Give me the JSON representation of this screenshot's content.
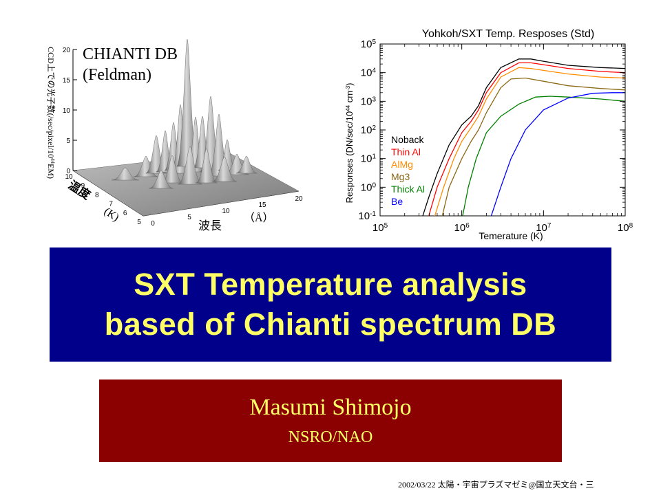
{
  "left_figure": {
    "label_line1": "CHIANTI DB",
    "label_line2": "(Feldman)",
    "z_axis_label": "CCD上での光子数(/sec/pixel/10",
    "z_axis_label_sup": "44",
    "z_axis_label_end": "EM)",
    "z_ticks": [
      "0",
      "5",
      "10",
      "15",
      "20"
    ],
    "temp_axis_label": "温度",
    "temp_unit": "(K)",
    "temp_ticks": [
      "5",
      "6",
      "7",
      "8",
      "9",
      "10"
    ],
    "wave_axis_label": "波長",
    "wave_unit": "（Å）",
    "wave_ticks": [
      "0",
      "5",
      "10",
      "15",
      "20"
    ]
  },
  "chart_data": {
    "type": "line",
    "title": "Yohkoh/SXT Temp. Resposes (Std)",
    "xlabel": "Temerature (K)",
    "ylabel": "Responses (DN/sec/10",
    "ylabel_sup": "44",
    "ylabel_unit": " cm",
    "ylabel_unit_sup": "-3",
    "ylabel_end": ")",
    "x_scale": "log",
    "y_scale": "log",
    "xlim": [
      100000,
      100000000
    ],
    "ylim": [
      0.1,
      100000
    ],
    "x_ticks": [
      {
        "base": "10",
        "exp": "5",
        "value": 100000
      },
      {
        "base": "10",
        "exp": "6",
        "value": 1000000
      },
      {
        "base": "10",
        "exp": "7",
        "value": 10000000
      },
      {
        "base": "10",
        "exp": "8",
        "value": 100000000
      }
    ],
    "y_ticks": [
      {
        "base": "10",
        "exp": "-1",
        "value": 0.1
      },
      {
        "base": "10",
        "exp": "0",
        "value": 1
      },
      {
        "base": "10",
        "exp": "1",
        "value": 10
      },
      {
        "base": "10",
        "exp": "2",
        "value": 100
      },
      {
        "base": "10",
        "exp": "3",
        "value": 1000
      },
      {
        "base": "10",
        "exp": "4",
        "value": 10000
      },
      {
        "base": "10",
        "exp": "5",
        "value": 100000
      }
    ],
    "legend_position": "middle-left",
    "series": [
      {
        "name": "Noback",
        "color": "#000000",
        "x": [
          320000,
          400000,
          500000,
          700000,
          1000000,
          1300000,
          1600000,
          2000000,
          3000000,
          5000000,
          7000000,
          10000000,
          20000000,
          50000000,
          100000000
        ],
        "y": [
          0.07,
          0.5,
          3,
          30,
          150,
          300,
          700,
          3000,
          15000,
          30000,
          30000,
          25000,
          18000,
          15000,
          14000
        ]
      },
      {
        "name": "Thin Al",
        "color": "#ff0000",
        "x": [
          380000,
          500000,
          700000,
          1000000,
          1300000,
          1600000,
          2000000,
          3000000,
          5000000,
          7000000,
          10000000,
          20000000,
          50000000,
          100000000
        ],
        "y": [
          0.07,
          1,
          10,
          80,
          200,
          500,
          2000,
          10000,
          22000,
          22000,
          19000,
          14000,
          11000,
          10000
        ]
      },
      {
        "name": "AlMg",
        "color": "#ff8c00",
        "x": [
          450000,
          600000,
          800000,
          1000000,
          1300000,
          1600000,
          2000000,
          3000000,
          5000000,
          7000000,
          10000000,
          20000000,
          50000000,
          100000000
        ],
        "y": [
          0.07,
          1,
          10,
          40,
          120,
          300,
          1200,
          7000,
          15000,
          14000,
          12000,
          9000,
          7000,
          6500
        ]
      },
      {
        "name": "Mg3",
        "color": "#8b6914",
        "x": [
          560000,
          700000,
          1000000,
          1300000,
          1600000,
          2000000,
          3000000,
          4000000,
          6000000,
          10000000,
          20000000,
          50000000,
          100000000
        ],
        "y": [
          0.07,
          1,
          10,
          40,
          100,
          400,
          3000,
          6000,
          6500,
          5000,
          3500,
          2800,
          2500
        ]
      },
      {
        "name": "Thick Al",
        "color": "#008000",
        "x": [
          1000000,
          1200000,
          1500000,
          2000000,
          3000000,
          5000000,
          8000000,
          12000000,
          20000000,
          50000000,
          100000000
        ],
        "y": [
          0.07,
          1,
          10,
          80,
          300,
          800,
          1400,
          1500,
          1400,
          1200,
          1000
        ]
      },
      {
        "name": "Be",
        "color": "#0000ff",
        "x": [
          2200000,
          3000000,
          4000000,
          6000000,
          10000000,
          20000000,
          40000000,
          70000000,
          100000000
        ],
        "y": [
          0.07,
          1,
          10,
          100,
          500,
          1300,
          1900,
          2000,
          2000
        ]
      }
    ]
  },
  "title": {
    "line1": "SXT Temperature analysis",
    "line2": "based of Chianti spectrum DB",
    "bg_color": "#00008b",
    "text_color": "#ffff66"
  },
  "author": {
    "name": "Masumi Shimojo",
    "affiliation": "NSRO/NAO",
    "bg_color": "#8b0000",
    "text_color": "#ffff66"
  },
  "footer": {
    "text": "2002/03/22 太陽・宇宙プラズマゼミ@国立天文台・三"
  }
}
